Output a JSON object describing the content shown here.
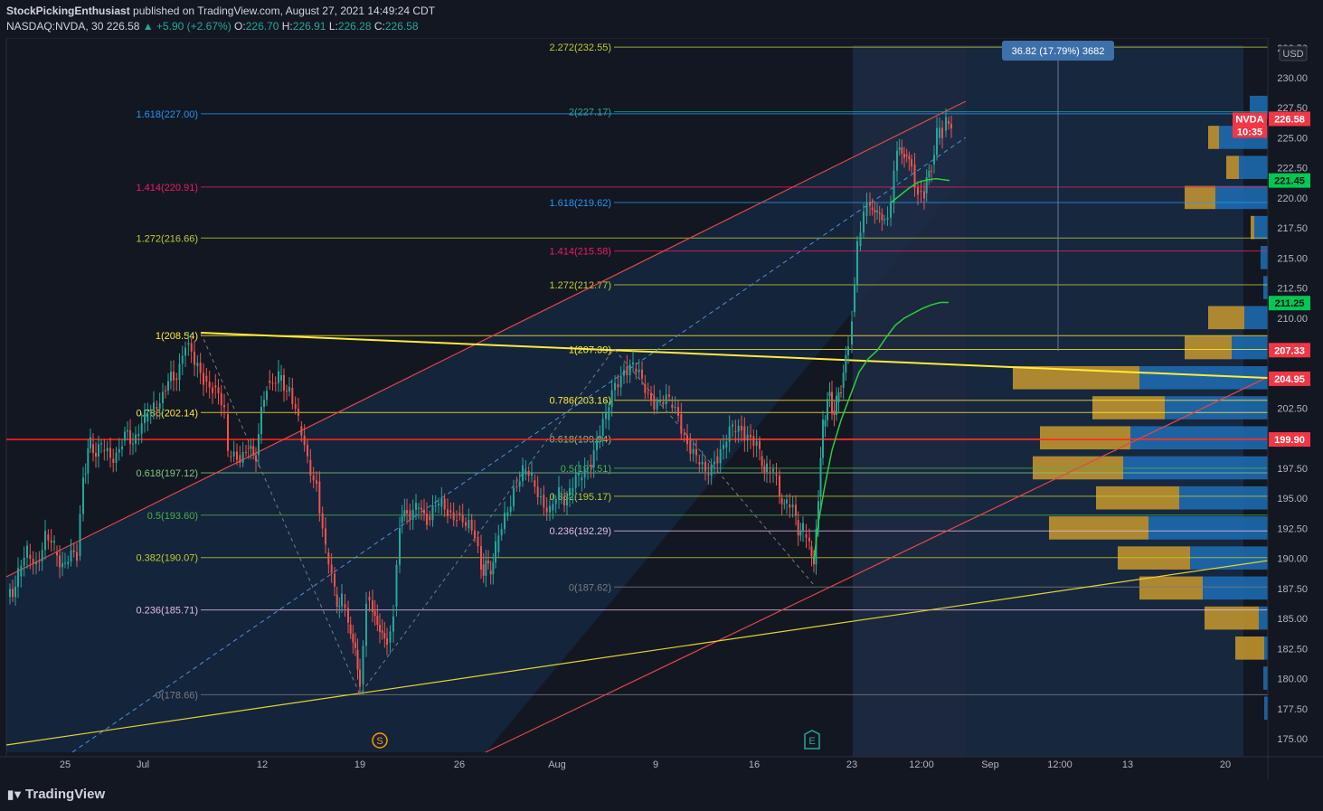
{
  "header": {
    "author": "StockPickingEnthusiast",
    "published": "published on TradingView.com, August 27, 2021 14:49:24 CDT",
    "symbol": "NASDAQ:NVDA, 30",
    "last": "226.58",
    "change": "▲ +5.90 (+2.67%)",
    "o_label": "O:",
    "o_value": "226.70",
    "h_label": "H:",
    "h_value": "226.91",
    "l_label": "L:",
    "l_value": "226.28",
    "c_label": "C:",
    "c_value": "226.58"
  },
  "footer": {
    "logo_text": "TradingView"
  },
  "chart_data": {
    "type": "candlestick",
    "currency": "USD",
    "ylim": [
      173.5,
      233.5
    ],
    "y_ticks": [
      "175.00",
      "177.50",
      "180.00",
      "182.50",
      "185.00",
      "187.50",
      "190.00",
      "192.50",
      "195.00",
      "197.50",
      "200.00",
      "202.50",
      "205.00",
      "207.50",
      "210.00",
      "212.50",
      "215.00",
      "217.50",
      "220.00",
      "222.50",
      "225.00",
      "227.50",
      "230.00",
      "232.50"
    ],
    "x_ticks": [
      {
        "label": "25",
        "x": 72
      },
      {
        "label": "Jul",
        "x": 158
      },
      {
        "label": "12",
        "x": 290
      },
      {
        "label": "19",
        "x": 398
      },
      {
        "label": "26",
        "x": 508
      },
      {
        "label": "Aug",
        "x": 616
      },
      {
        "label": "9",
        "x": 725
      },
      {
        "label": "16",
        "x": 834
      },
      {
        "label": "23",
        "x": 942
      },
      {
        "label": "12:00",
        "x": 1019
      },
      {
        "label": "Sep",
        "x": 1095
      },
      {
        "label": "12:00",
        "x": 1172
      },
      {
        "label": "13",
        "x": 1247
      },
      {
        "label": "20",
        "x": 1355
      }
    ],
    "fib_left": [
      {
        "label": "1(208.54)",
        "value": 208.54,
        "color": "#ffeb3b"
      },
      {
        "label": "0.786(202.14)",
        "value": 202.14,
        "color": "#ffeb3b"
      },
      {
        "label": "0.618(197.12)",
        "value": 197.12,
        "color": "#81c784"
      },
      {
        "label": "0.5(193.60)",
        "value": 193.6,
        "color": "#4caf50"
      },
      {
        "label": "0.382(190.07)",
        "value": 190.07,
        "color": "#c0ca33"
      },
      {
        "label": "0.236(185.71)",
        "value": 185.71,
        "color": "#e1bee7"
      },
      {
        "label": "0(178.66)",
        "value": 178.66,
        "color": "#787b86"
      },
      {
        "label": "1.272(216.66)",
        "value": 216.66,
        "color": "#c0ca33"
      },
      {
        "label": "1.414(220.91)",
        "value": 220.91,
        "color": "#e91e63"
      },
      {
        "label": "1.618(227.00)",
        "value": 227.0,
        "color": "#2196f3"
      }
    ],
    "fib_right": [
      {
        "label": "1(207.39)",
        "value": 207.39,
        "color": "#ffeb3b"
      },
      {
        "label": "0.786(203.16)",
        "value": 203.16,
        "color": "#ffeb3b"
      },
      {
        "label": "0.618(199.94)",
        "value": 199.94,
        "color": "#81c784"
      },
      {
        "label": "0.5(197.51)",
        "value": 197.51,
        "color": "#4caf50"
      },
      {
        "label": "0.382(195.17)",
        "value": 195.17,
        "color": "#c0ca33"
      },
      {
        "label": "0.236(192.29)",
        "value": 192.29,
        "color": "#e1bee7"
      },
      {
        "label": "0(187.62)",
        "value": 187.62,
        "color": "#787b86"
      },
      {
        "label": "1.272(212.77)",
        "value": 212.77,
        "color": "#c0ca33"
      },
      {
        "label": "1.414(215.58)",
        "value": 215.58,
        "color": "#e91e63"
      },
      {
        "label": "1.618(219.62)",
        "value": 219.62,
        "color": "#2196f3"
      },
      {
        "label": "2(227.17)",
        "value": 227.17,
        "color": "#26a69a"
      },
      {
        "label": "2.272(232.55)",
        "value": 232.55,
        "color": "#c0ca33"
      }
    ],
    "price_tags": [
      {
        "label": "NVDA",
        "value": 226.58,
        "sub": "10:35",
        "color": "#f23645"
      },
      {
        "label": "226.58",
        "value": 226.58,
        "color": "#f23645"
      },
      {
        "label": "221.45",
        "value": 221.45,
        "color": "#00c853"
      },
      {
        "label": "211.25",
        "value": 211.25,
        "color": "#00c853"
      },
      {
        "label": "207.33",
        "value": 207.33,
        "color": "#f23645"
      },
      {
        "label": "204.95",
        "value": 204.95,
        "color": "#f23645"
      },
      {
        "label": "199.90",
        "value": 199.9,
        "color": "#f23645"
      }
    ],
    "measure_label": "36.82 (17.79%) 3682",
    "events": [
      {
        "label": "S",
        "x": 420,
        "color": "#ff9800"
      },
      {
        "label": "E",
        "x": 898,
        "color": "#26a69a"
      }
    ],
    "horizontal_line": 199.9,
    "series": [
      {
        "name": "price",
        "points": [
          [
            8,
            186.8
          ],
          [
            20,
            188.5
          ],
          [
            30,
            190.3
          ],
          [
            40,
            189.8
          ],
          [
            50,
            192.0
          ],
          [
            60,
            190.5
          ],
          [
            72,
            189.5
          ],
          [
            85,
            190.2
          ],
          [
            92,
            197.0
          ],
          [
            100,
            199.5
          ],
          [
            112,
            199.0
          ],
          [
            122,
            198.3
          ],
          [
            135,
            199.8
          ],
          [
            150,
            200.2
          ],
          [
            160,
            201.4
          ],
          [
            170,
            202.6
          ],
          [
            180,
            204.0
          ],
          [
            192,
            205.0
          ],
          [
            205,
            207.8
          ],
          [
            215,
            206.0
          ],
          [
            225,
            205.2
          ],
          [
            235,
            204.4
          ],
          [
            248,
            202.0
          ],
          [
            252,
            198.5
          ],
          [
            262,
            198.6
          ],
          [
            272,
            199.2
          ],
          [
            283,
            198.6
          ],
          [
            295,
            204.8
          ],
          [
            308,
            204.8
          ],
          [
            320,
            204.2
          ],
          [
            330,
            201.0
          ],
          [
            340,
            198.2
          ],
          [
            350,
            196.4
          ],
          [
            360,
            190.5
          ],
          [
            370,
            187.0
          ],
          [
            378,
            186.2
          ],
          [
            385,
            184.5
          ],
          [
            393,
            182.4
          ],
          [
            398,
            179.5
          ],
          [
            405,
            186.8
          ],
          [
            412,
            185.6
          ],
          [
            420,
            184.0
          ],
          [
            428,
            183.0
          ],
          [
            435,
            186.0
          ],
          [
            442,
            193.0
          ],
          [
            450,
            194.0
          ],
          [
            460,
            194.2
          ],
          [
            472,
            193.5
          ],
          [
            485,
            194.3
          ],
          [
            495,
            194.0
          ],
          [
            505,
            193.8
          ],
          [
            515,
            192.5
          ],
          [
            525,
            191.8
          ],
          [
            532,
            189.5
          ],
          [
            540,
            189.0
          ],
          [
            548,
            190.5
          ],
          [
            558,
            193.5
          ],
          [
            568,
            196.0
          ],
          [
            578,
            197.0
          ],
          [
            588,
            196.5
          ],
          [
            598,
            195.3
          ],
          [
            608,
            194.0
          ],
          [
            618,
            195.0
          ],
          [
            630,
            195.5
          ],
          [
            640,
            196.5
          ],
          [
            650,
            197.8
          ],
          [
            660,
            200.0
          ],
          [
            670,
            201.5
          ],
          [
            680,
            204.5
          ],
          [
            690,
            206.0
          ],
          [
            700,
            205.8
          ],
          [
            710,
            204.5
          ],
          [
            720,
            203.5
          ],
          [
            730,
            203.0
          ],
          [
            740,
            202.8
          ],
          [
            750,
            202.0
          ],
          [
            760,
            199.8
          ],
          [
            770,
            198.0
          ],
          [
            780,
            197.0
          ],
          [
            790,
            198.5
          ],
          [
            800,
            199.2
          ],
          [
            810,
            200.6
          ],
          [
            820,
            201.0
          ],
          [
            830,
            200.2
          ],
          [
            840,
            198.5
          ],
          [
            848,
            197.3
          ],
          [
            855,
            197.0
          ],
          [
            862,
            195.0
          ],
          [
            870,
            194.5
          ],
          [
            880,
            193.2
          ],
          [
            888,
            192.0
          ],
          [
            895,
            191.0
          ],
          [
            900,
            189.5
          ],
          [
            905,
            195.2
          ],
          [
            910,
            201.0
          ],
          [
            915,
            203.5
          ],
          [
            920,
            202.3
          ],
          [
            925,
            203.0
          ],
          [
            930,
            204.2
          ],
          [
            938,
            207.8
          ],
          [
            942,
            210.5
          ],
          [
            948,
            216.0
          ],
          [
            955,
            218.5
          ],
          [
            962,
            219.2
          ],
          [
            970,
            218.8
          ],
          [
            978,
            218.2
          ],
          [
            985,
            219.6
          ],
          [
            992,
            224.0
          ],
          [
            1000,
            223.6
          ],
          [
            1008,
            222.8
          ],
          [
            1015,
            220.6
          ],
          [
            1022,
            220.4
          ],
          [
            1030,
            222.8
          ],
          [
            1036,
            225.0
          ],
          [
            1042,
            225.6
          ],
          [
            1046,
            226.4
          ],
          [
            1052,
            226.58
          ]
        ]
      },
      {
        "name": "ma",
        "points": [
          [
            900,
            189.8
          ],
          [
            905,
            193.0
          ],
          [
            912,
            196.0
          ],
          [
            920,
            199.0
          ],
          [
            930,
            201.5
          ],
          [
            940,
            203.5
          ],
          [
            950,
            205.5
          ],
          [
            960,
            206.6
          ],
          [
            970,
            207.3
          ],
          [
            980,
            208.4
          ],
          [
            990,
            209.4
          ],
          [
            1000,
            210.0
          ],
          [
            1010,
            210.4
          ],
          [
            1020,
            210.8
          ],
          [
            1030,
            211.1
          ],
          [
            1040,
            211.3
          ],
          [
            1049,
            211.3
          ]
        ]
      },
      {
        "name": "ma2",
        "points": [
          [
            985,
            219.6
          ],
          [
            995,
            220.2
          ],
          [
            1005,
            220.8
          ],
          [
            1015,
            221.3
          ],
          [
            1025,
            221.5
          ],
          [
            1035,
            221.6
          ],
          [
            1045,
            221.5
          ],
          [
            1050,
            221.45
          ]
        ]
      }
    ],
    "volume_profile": [
      {
        "price": 177.5,
        "buy": 0,
        "sell": 4
      },
      {
        "price": 180.0,
        "buy": 0,
        "sell": 5
      },
      {
        "price": 182.5,
        "buy": 32,
        "sell": 4
      },
      {
        "price": 185.0,
        "buy": 60,
        "sell": 10
      },
      {
        "price": 187.5,
        "buy": 70,
        "sell": 72
      },
      {
        "price": 190.0,
        "buy": 80,
        "sell": 86
      },
      {
        "price": 192.5,
        "buy": 110,
        "sell": 132
      },
      {
        "price": 195.0,
        "buy": 92,
        "sell": 98
      },
      {
        "price": 197.5,
        "buy": 100,
        "sell": 160
      },
      {
        "price": 200.0,
        "buy": 100,
        "sell": 152
      },
      {
        "price": 202.5,
        "buy": 80,
        "sell": 114
      },
      {
        "price": 205.0,
        "buy": 140,
        "sell": 142
      },
      {
        "price": 207.5,
        "buy": 52,
        "sell": 40
      },
      {
        "price": 210.0,
        "buy": 40,
        "sell": 26
      },
      {
        "price": 212.5,
        "buy": 0,
        "sell": 5
      },
      {
        "price": 215.0,
        "buy": 0,
        "sell": 8
      },
      {
        "price": 217.5,
        "buy": 4,
        "sell": 15
      },
      {
        "price": 220.0,
        "buy": 34,
        "sell": 58
      },
      {
        "price": 222.5,
        "buy": 14,
        "sell": 32
      },
      {
        "price": 225.0,
        "buy": 12,
        "sell": 54
      },
      {
        "price": 227.5,
        "buy": 0,
        "sell": 20
      }
    ]
  }
}
